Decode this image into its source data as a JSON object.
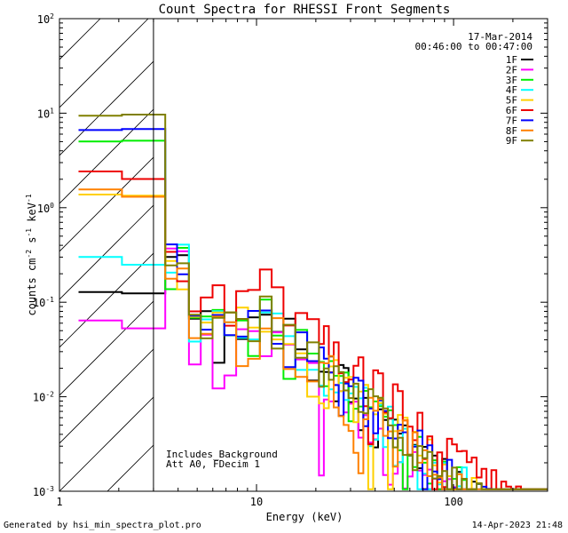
{
  "chart_data": {
    "type": "line",
    "title": "Count Spectra for RHESSI Front Segments",
    "xlabel": "Energy (keV)",
    "ylabel_parts": {
      "base": "counts cm",
      "exp1": "-2",
      "mid": " s",
      "exp2": "-1",
      "unit": " keV",
      "exp3": "-1"
    },
    "xscale": "log",
    "yscale": "log",
    "xlim": [
      1,
      300
    ],
    "ylim": [
      0.001,
      100
    ],
    "xticks": [
      {
        "v": 1,
        "label": "1"
      },
      {
        "v": 10,
        "label": "10"
      },
      {
        "v": 100,
        "label": "100"
      }
    ],
    "yticks": [
      {
        "v": 0.001,
        "base": "10",
        "exp": "-3"
      },
      {
        "v": 0.01,
        "base": "10",
        "exp": "-2"
      },
      {
        "v": 0.1,
        "base": "10",
        "exp": "-1"
      },
      {
        "v": 1,
        "base": "10",
        "exp": "0"
      },
      {
        "v": 10,
        "base": "10",
        "exp": "1"
      },
      {
        "v": 100,
        "base": "10",
        "exp": "2"
      }
    ],
    "date": "17-Mar-2014",
    "time_range": "00:46:00 to 00:47:00",
    "annotation_lines": [
      "Includes_Background",
      "Att A0, FDecim 1"
    ],
    "shaded_region": {
      "x_from": 1,
      "x_to": 3,
      "pattern": "diagonal hatch"
    },
    "series": [
      {
        "name": "1F",
        "color": "#000000",
        "start": 0.15
      },
      {
        "name": "2F",
        "color": "#ff00ff",
        "start": 0.075
      },
      {
        "name": "3F",
        "color": "#00ee00",
        "start": 6.5
      },
      {
        "name": "4F",
        "color": "#00ffff",
        "start": 0.35
      },
      {
        "name": "5F",
        "color": "#ffd000",
        "start": 1.6
      },
      {
        "name": "6F",
        "color": "#ee0000",
        "start": 2.8
      },
      {
        "name": "7F",
        "color": "#0000ff",
        "start": 8.5
      },
      {
        "name": "8F",
        "color": "#ff8000",
        "start": 1.8
      },
      {
        "name": "9F",
        "color": "#808000",
        "start": 12.0
      }
    ]
  },
  "footer": {
    "generated_by": "Generated by hsi_min_spectra_plot.pro",
    "generated_on": "14-Apr-2023 21:48"
  }
}
